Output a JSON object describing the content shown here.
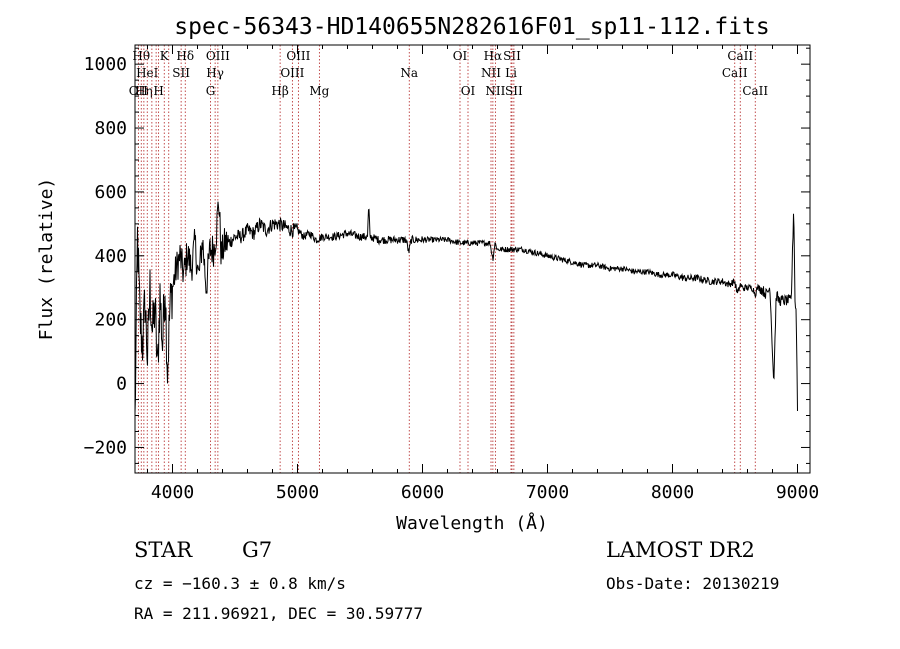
{
  "chart_data": {
    "type": "line",
    "title": "spec-56343-HD140655N282616F01_sp11-112.fits",
    "xlabel": "Wavelength (Å)",
    "ylabel": "Flux (relative)",
    "xlim": [
      3700,
      9100
    ],
    "ylim": [
      -280,
      1060
    ],
    "x_ticks": [
      4000,
      5000,
      6000,
      7000,
      8000,
      9000
    ],
    "y_ticks": [
      -200,
      0,
      200,
      400,
      600,
      800,
      1000
    ],
    "grid": false,
    "line_color": "#000000",
    "marker_color": "#b22222",
    "series": [
      {
        "x": [
          3700,
          3720,
          3740,
          3760,
          3780,
          3800,
          3820,
          3840,
          3860,
          3880,
          3900,
          3920,
          3940,
          3960,
          3980,
          4000,
          4030,
          4060,
          4090,
          4120,
          4150,
          4180,
          4210,
          4240,
          4270,
          4300,
          4330,
          4350,
          4370,
          4390,
          4420,
          4450,
          4500,
          4550,
          4600,
          4650,
          4700,
          4750,
          4800,
          4850,
          4900,
          4950,
          5000,
          5050,
          5100,
          5150,
          5200,
          5300,
          5400,
          5500,
          5560,
          5570,
          5580,
          5650,
          5700,
          5800,
          5870,
          5890,
          5910,
          5950,
          6000,
          6100,
          6200,
          6300,
          6400,
          6500,
          6540,
          6563,
          6580,
          6600,
          6650,
          6700,
          6750,
          6800,
          6900,
          7000,
          7100,
          7200,
          7300,
          7400,
          7500,
          7600,
          7700,
          7800,
          7900,
          8000,
          8100,
          8200,
          8300,
          8400,
          8450,
          8498,
          8520,
          8542,
          8560,
          8600,
          8640,
          8662,
          8680,
          8700,
          8750,
          8780,
          8810,
          8830,
          8850,
          8900,
          8950,
          8970,
          8980,
          8990,
          9000
        ],
        "y": [
          -120,
          460,
          200,
          120,
          260,
          80,
          300,
          160,
          240,
          40,
          280,
          120,
          320,
          40,
          240,
          300,
          360,
          400,
          340,
          410,
          360,
          440,
          330,
          450,
          300,
          420,
          420,
          470,
          580,
          400,
          440,
          440,
          460,
          460,
          480,
          470,
          500,
          480,
          500,
          500,
          490,
          480,
          480,
          460,
          470,
          450,
          460,
          460,
          470,
          460,
          460,
          560,
          460,
          450,
          450,
          450,
          450,
          410,
          450,
          450,
          450,
          450,
          450,
          440,
          440,
          440,
          440,
          390,
          440,
          420,
          420,
          420,
          420,
          420,
          410,
          400,
          390,
          380,
          370,
          370,
          360,
          360,
          350,
          350,
          340,
          340,
          330,
          330,
          320,
          320,
          310,
          320,
          280,
          310,
          300,
          300,
          300,
          280,
          300,
          300,
          280,
          300,
          0,
          280,
          260,
          260,
          260,
          560,
          260,
          220,
          -80
        ]
      }
    ],
    "lines": [
      {
        "x": 3727,
        "label": "OII",
        "row": 2
      },
      {
        "x": 3750,
        "label": "Hθ",
        "row": 0
      },
      {
        "x": 3771,
        "label": "Hη",
        "row": 2
      },
      {
        "x": 3798,
        "label": "HeI",
        "row": 1
      },
      {
        "x": 3835,
        "label": "",
        "row": 0
      },
      {
        "x": 3869,
        "label": "",
        "row": 0
      },
      {
        "x": 3889,
        "label": "H",
        "row": 2
      },
      {
        "x": 3934,
        "label": "K",
        "row": 0
      },
      {
        "x": 3970,
        "label": "",
        "row": 0
      },
      {
        "x": 4069,
        "label": "SII",
        "row": 1
      },
      {
        "x": 4102,
        "label": "Hδ",
        "row": 0
      },
      {
        "x": 4304,
        "label": "G",
        "row": 2
      },
      {
        "x": 4341,
        "label": "Hγ",
        "row": 1
      },
      {
        "x": 4363,
        "label": "OIII",
        "row": 0
      },
      {
        "x": 4861,
        "label": "Hβ",
        "row": 2
      },
      {
        "x": 4959,
        "label": "OIII",
        "row": 1
      },
      {
        "x": 5007,
        "label": "OIII",
        "row": 0
      },
      {
        "x": 5175,
        "label": "Mg",
        "row": 2
      },
      {
        "x": 5894,
        "label": "Na",
        "row": 1
      },
      {
        "x": 6300,
        "label": "OI",
        "row": 0
      },
      {
        "x": 6364,
        "label": "OI",
        "row": 2
      },
      {
        "x": 6548,
        "label": "NII",
        "row": 1
      },
      {
        "x": 6563,
        "label": "Hα",
        "row": 0
      },
      {
        "x": 6583,
        "label": "NII",
        "row": 2
      },
      {
        "x": 6708,
        "label": "Li",
        "row": 1
      },
      {
        "x": 6716,
        "label": "SII",
        "row": 0
      },
      {
        "x": 6731,
        "label": "SII",
        "row": 2
      },
      {
        "x": 8498,
        "label": "CaII",
        "row": 1
      },
      {
        "x": 8542,
        "label": "CaII",
        "row": 0
      },
      {
        "x": 8662,
        "label": "CaII",
        "row": 2
      }
    ]
  },
  "footer": {
    "class_label": "STAR",
    "subclass": "G7",
    "survey": "LAMOST DR2",
    "redshift": "cz = −160.3 ± 0.8 km/s",
    "obs_date": "Obs-Date: 20130219",
    "coords": "RA = 211.96921, DEC =  30.59777"
  }
}
